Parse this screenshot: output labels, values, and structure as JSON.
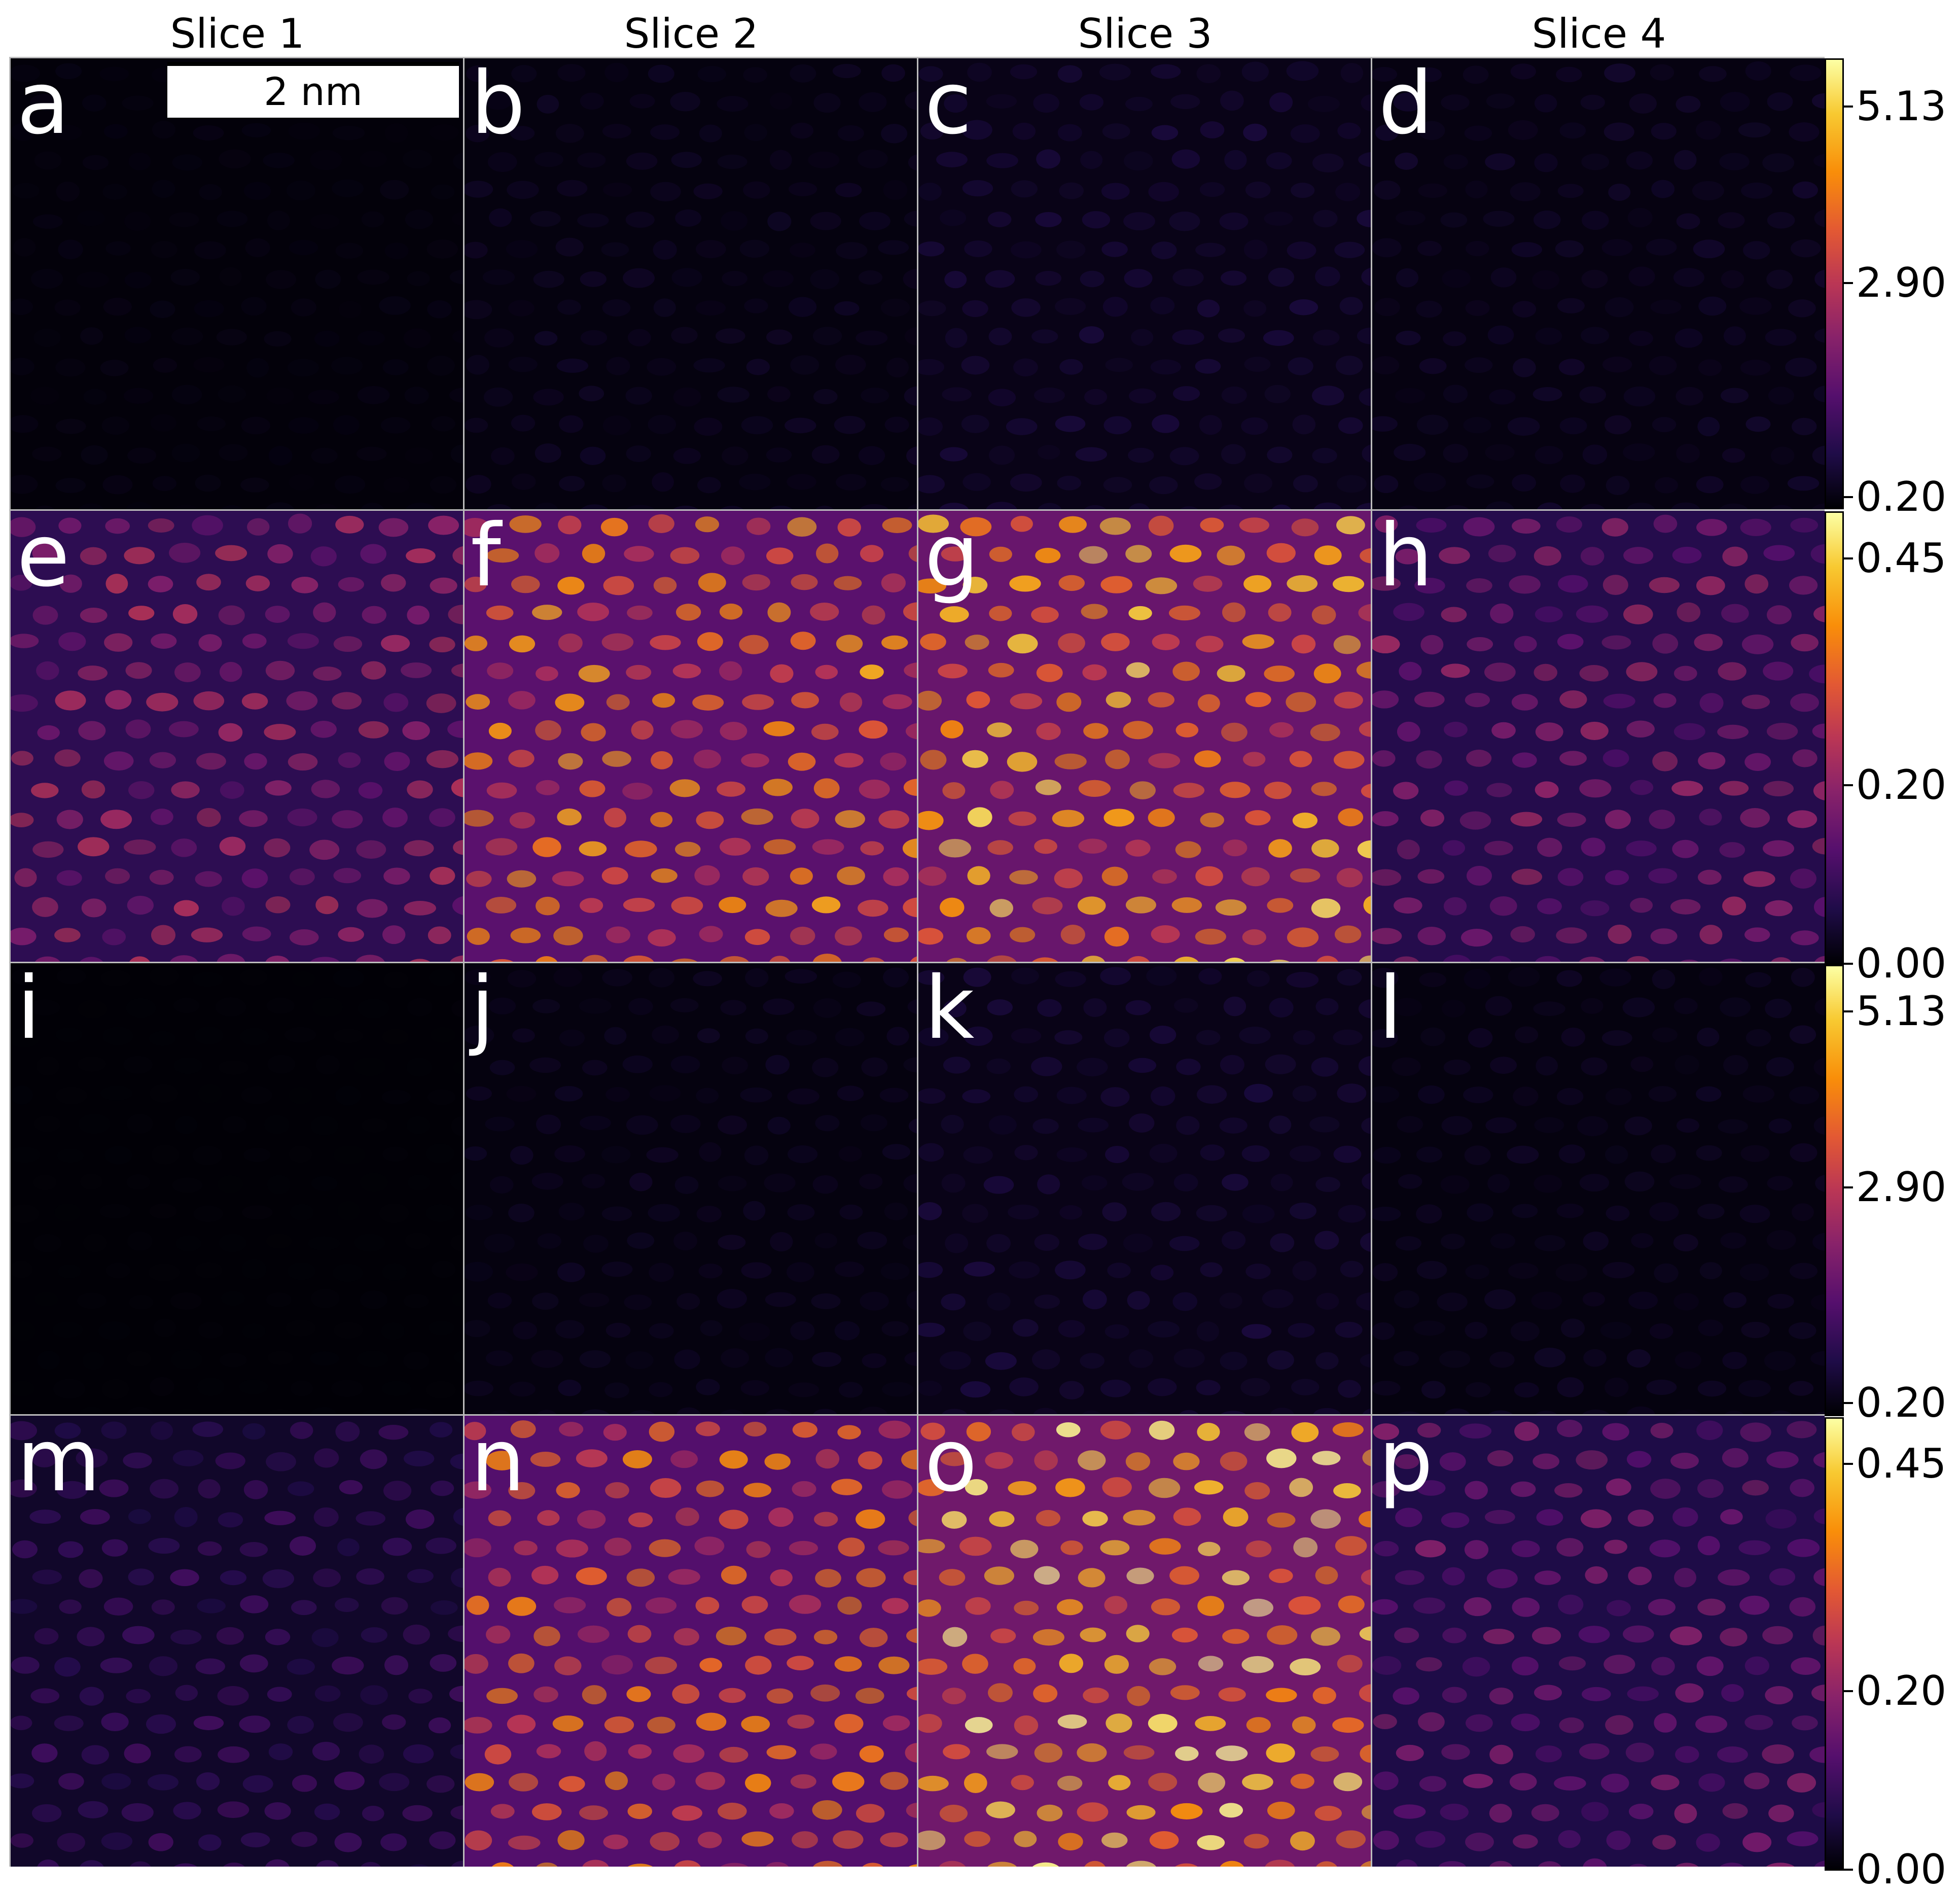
{
  "columns": [
    "Slice 1",
    "Slice 2",
    "Slice 3",
    "Slice 4"
  ],
  "scale_bar": "2 nm",
  "panels": [
    {
      "letter": "a",
      "row": 0,
      "col": 0,
      "level": 0.03
    },
    {
      "letter": "b",
      "row": 0,
      "col": 1,
      "level": 0.06
    },
    {
      "letter": "c",
      "row": 0,
      "col": 2,
      "level": 0.1
    },
    {
      "letter": "d",
      "row": 0,
      "col": 3,
      "level": 0.07
    },
    {
      "letter": "e",
      "row": 1,
      "col": 0,
      "level": 0.45
    },
    {
      "letter": "f",
      "row": 1,
      "col": 1,
      "level": 0.75
    },
    {
      "letter": "g",
      "row": 1,
      "col": 2,
      "level": 0.85
    },
    {
      "letter": "h",
      "row": 1,
      "col": 3,
      "level": 0.4
    },
    {
      "letter": "i",
      "row": 2,
      "col": 0,
      "level": 0.01
    },
    {
      "letter": "j",
      "row": 2,
      "col": 1,
      "level": 0.06
    },
    {
      "letter": "k",
      "row": 2,
      "col": 2,
      "level": 0.1
    },
    {
      "letter": "l",
      "row": 2,
      "col": 3,
      "level": 0.06
    },
    {
      "letter": "m",
      "row": 3,
      "col": 0,
      "level": 0.2
    },
    {
      "letter": "n",
      "row": 3,
      "col": 1,
      "level": 0.7
    },
    {
      "letter": "o",
      "row": 3,
      "col": 2,
      "level": 0.9
    },
    {
      "letter": "p",
      "row": 3,
      "col": 3,
      "level": 0.35
    }
  ],
  "colorbars": [
    {
      "name": "colorbar-1",
      "ticks": [
        "5.13",
        "2.90",
        "0.20"
      ]
    },
    {
      "name": "colorbar-2",
      "ticks": [
        "0.45",
        "0.20",
        "0.00"
      ]
    },
    {
      "name": "colorbar-3",
      "ticks": [
        "5.13",
        "2.90",
        "0.20"
      ]
    },
    {
      "name": "colorbar-4",
      "ticks": [
        "0.45",
        "0.20",
        "0.00"
      ]
    }
  ],
  "colormap": [
    "#000004",
    "#1f0c48",
    "#550f6d",
    "#88226a",
    "#ba3655",
    "#e35933",
    "#f98e09",
    "#f8c931",
    "#fcffa4"
  ]
}
